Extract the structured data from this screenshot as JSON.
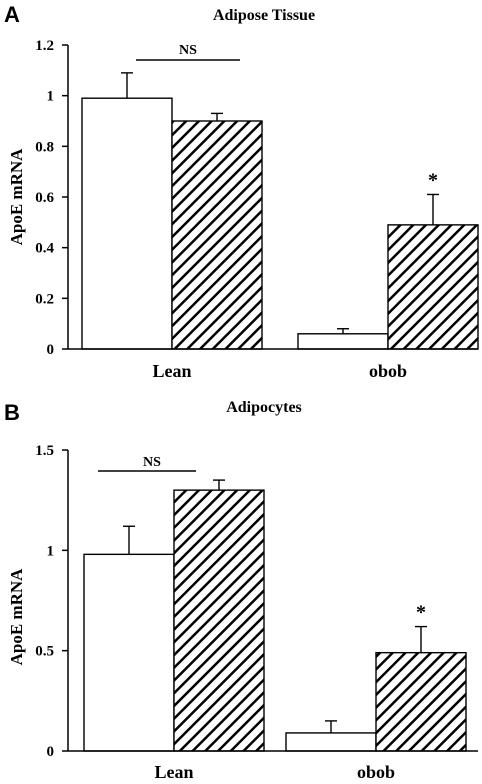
{
  "chart_data": [
    {
      "panel": "A",
      "type": "bar",
      "title": "Adipose Tissue",
      "ylabel": "ApoE mRNA",
      "xlabel": "",
      "categories": [
        "Lean",
        "obob"
      ],
      "series": [
        {
          "values": [
            0.99,
            0.06
          ],
          "errors": [
            0.1,
            0.02
          ],
          "fill": "white"
        },
        {
          "values": [
            0.9,
            0.49
          ],
          "errors": [
            0.03,
            0.12
          ],
          "fill": "hatched"
        }
      ],
      "ylim": [
        0,
        1.2
      ],
      "yticks": [
        0,
        0.2,
        0.4,
        0.6,
        0.8,
        1,
        1.2
      ],
      "ytick_labels": [
        "0",
        "0.2",
        "0.4",
        "0.6",
        "0.8",
        "1",
        "1.2"
      ],
      "annotations": [
        {
          "text": "NS",
          "category": "Lean",
          "type": "bracket"
        },
        {
          "text": "*",
          "category": "obob",
          "series": 1,
          "type": "marker"
        }
      ],
      "grid": false
    },
    {
      "panel": "B",
      "type": "bar",
      "title": "Adipocytes",
      "ylabel": "ApoE mRNA",
      "xlabel": "",
      "categories": [
        "Lean",
        "obob"
      ],
      "series": [
        {
          "values": [
            0.98,
            0.09
          ],
          "errors": [
            0.14,
            0.06
          ],
          "fill": "white"
        },
        {
          "values": [
            1.3,
            0.49
          ],
          "errors": [
            0.05,
            0.13
          ],
          "fill": "hatched"
        }
      ],
      "ylim": [
        0,
        1.5
      ],
      "yticks": [
        0,
        0.5,
        1,
        1.5
      ],
      "ytick_labels": [
        "0",
        "0.5",
        "1",
        "1.5"
      ],
      "annotations": [
        {
          "text": "NS",
          "category": "Lean",
          "type": "bracket"
        },
        {
          "text": "*",
          "category": "obob",
          "series": 1,
          "type": "marker"
        }
      ],
      "grid": false
    }
  ]
}
